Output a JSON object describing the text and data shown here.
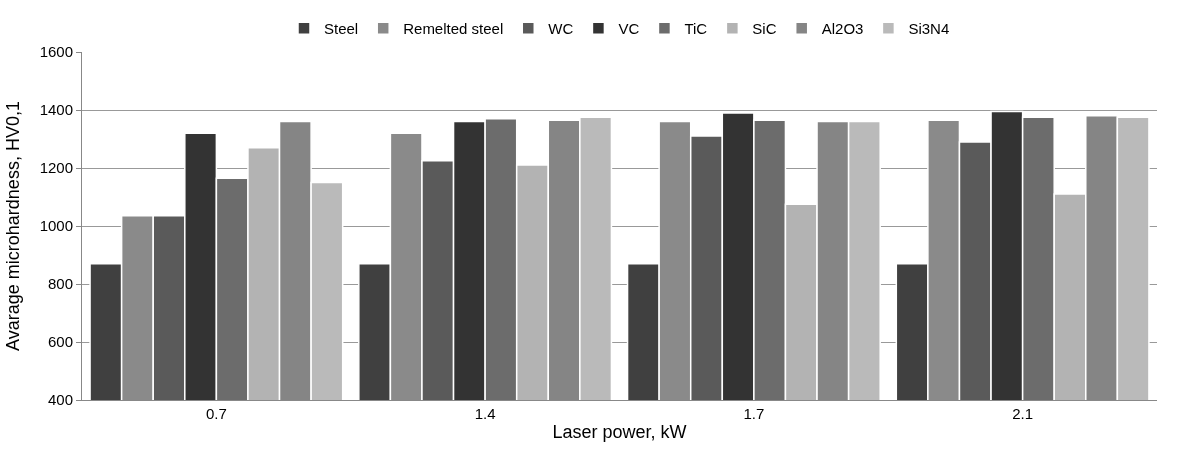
{
  "chart_data": {
    "type": "bar",
    "xlabel": "Laser power, kW",
    "ylabel": "Avarage microhardness, HV0,1",
    "categories": [
      "0.7",
      "1.4",
      "1.7",
      "2.1"
    ],
    "series": [
      {
        "name": "Steel",
        "color": "#404040",
        "values": [
          870,
          870,
          870,
          870
        ]
      },
      {
        "name": "Remelted steel",
        "color": "#8a8a8a",
        "values": [
          1035,
          1320,
          1360,
          1365
        ]
      },
      {
        "name": "WC",
        "color": "#5a5a5a",
        "values": [
          1035,
          1225,
          1310,
          1290
        ]
      },
      {
        "name": "VC",
        "color": "#333333",
        "values": [
          1320,
          1360,
          1390,
          1395
        ]
      },
      {
        "name": "TiC",
        "color": "#6c6c6c",
        "values": [
          1165,
          1370,
          1365,
          1375
        ]
      },
      {
        "name": "SiC",
        "color": "#b3b3b3",
        "values": [
          1270,
          1210,
          1075,
          1110
        ]
      },
      {
        "name": "Al2O3",
        "color": "#858585",
        "values": [
          1360,
          1365,
          1360,
          1380
        ]
      },
      {
        "name": "Si3N4",
        "color": "#bababa",
        "values": [
          1150,
          1375,
          1360,
          1375
        ]
      }
    ],
    "ylim": [
      400,
      1600
    ],
    "yticks": [
      400,
      600,
      800,
      1000,
      1200,
      1400,
      1600
    ],
    "grid": "y",
    "legend": "top"
  }
}
